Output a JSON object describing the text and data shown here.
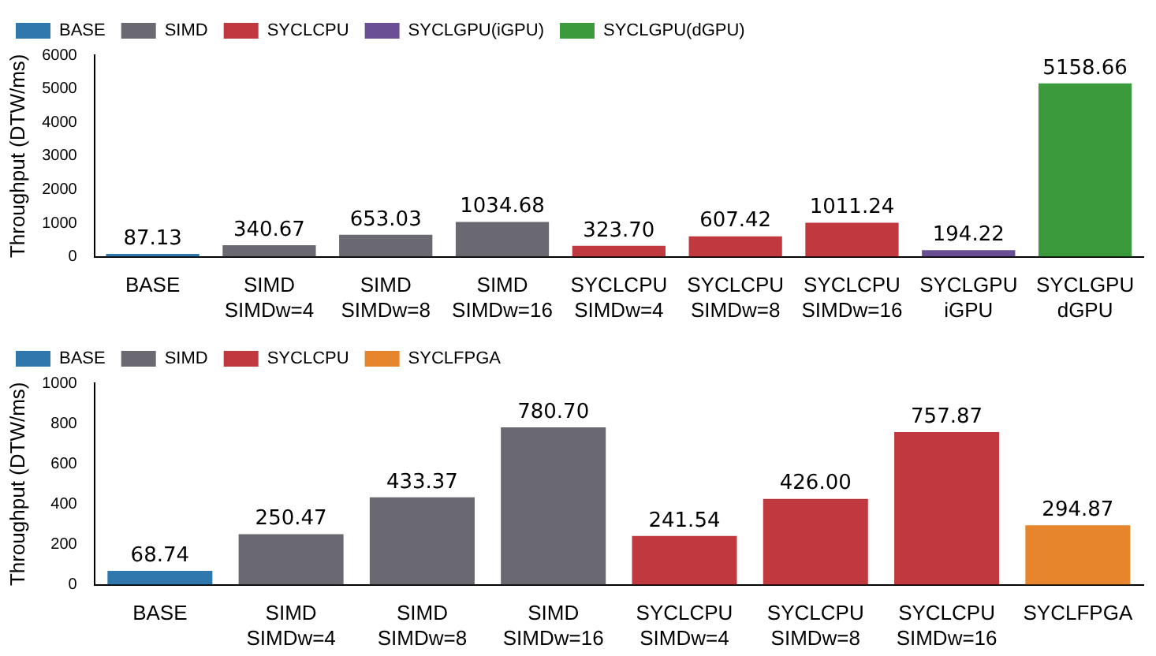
{
  "chart_data": [
    {
      "type": "bar",
      "ylabel": "Throughput (DTW/ms)",
      "categories": [
        "BASE",
        "SIMD\nSIMDw=4",
        "SIMD\nSIMDw=8",
        "SIMD\nSIMDw=16",
        "SYCLCPU\nSIMDw=4",
        "SYCLCPU\nSIMDw=8",
        "SYCLCPU\nSIMDw=16",
        "SYCLGPU\niGPU",
        "SYCLGPU\ndGPU"
      ],
      "series": [
        {
          "name": "BASE",
          "color": "#2e78ad",
          "values": [
            87.13,
            null,
            null,
            null,
            null,
            null,
            null,
            null,
            null
          ]
        },
        {
          "name": "SIMD",
          "color": "#6a6972",
          "values": [
            null,
            340.67,
            653.03,
            1034.68,
            null,
            null,
            null,
            null,
            null
          ]
        },
        {
          "name": "SYCLCPU",
          "color": "#c0393f",
          "values": [
            null,
            null,
            null,
            null,
            323.7,
            607.42,
            1011.24,
            null,
            null
          ]
        },
        {
          "name": "SYCLGPU(iGPU)",
          "color": "#6b4f94",
          "values": [
            null,
            null,
            null,
            null,
            null,
            null,
            null,
            194.22,
            null
          ]
        },
        {
          "name": "SYCLGPU(dGPU)",
          "color": "#3a9a3c",
          "values": [
            null,
            null,
            null,
            null,
            null,
            null,
            null,
            null,
            5158.66
          ]
        }
      ],
      "value_labels": [
        "87.13",
        "340.67",
        "653.03",
        "1034.68",
        "323.70",
        "607.42",
        "1011.24",
        "194.22",
        "5158.66"
      ],
      "ylim": [
        0,
        6000
      ],
      "yticks": [
        0,
        1000,
        2000,
        3000,
        4000,
        5000,
        6000
      ],
      "legend": "top left",
      "grid": false
    },
    {
      "type": "bar",
      "ylabel": "Throughput (DTW/ms)",
      "categories": [
        "BASE",
        "SIMD\nSIMDw=4",
        "SIMD\nSIMDw=8",
        "SIMD\nSIMDw=16",
        "SYCLCPU\nSIMDw=4",
        "SYCLCPU\nSIMDw=8",
        "SYCLCPU\nSIMDw=16",
        "SYCLFPGA"
      ],
      "series": [
        {
          "name": "BASE",
          "color": "#2e78ad",
          "values": [
            68.74,
            null,
            null,
            null,
            null,
            null,
            null,
            null
          ]
        },
        {
          "name": "SIMD",
          "color": "#6a6972",
          "values": [
            null,
            250.47,
            433.37,
            780.7,
            null,
            null,
            null,
            null
          ]
        },
        {
          "name": "SYCLCPU",
          "color": "#c0393f",
          "values": [
            null,
            null,
            null,
            null,
            241.54,
            426.0,
            757.87,
            null
          ]
        },
        {
          "name": "SYCLFPGA",
          "color": "#e6852b",
          "values": [
            null,
            null,
            null,
            null,
            null,
            null,
            null,
            294.87
          ]
        }
      ],
      "value_labels": [
        "68.74",
        "250.47",
        "433.37",
        "780.70",
        "241.54",
        "426.00",
        "757.87",
        "294.87"
      ],
      "ylim": [
        0,
        1000
      ],
      "yticks": [
        0,
        200,
        400,
        600,
        800,
        1000
      ],
      "legend": "top left",
      "grid": false
    }
  ]
}
